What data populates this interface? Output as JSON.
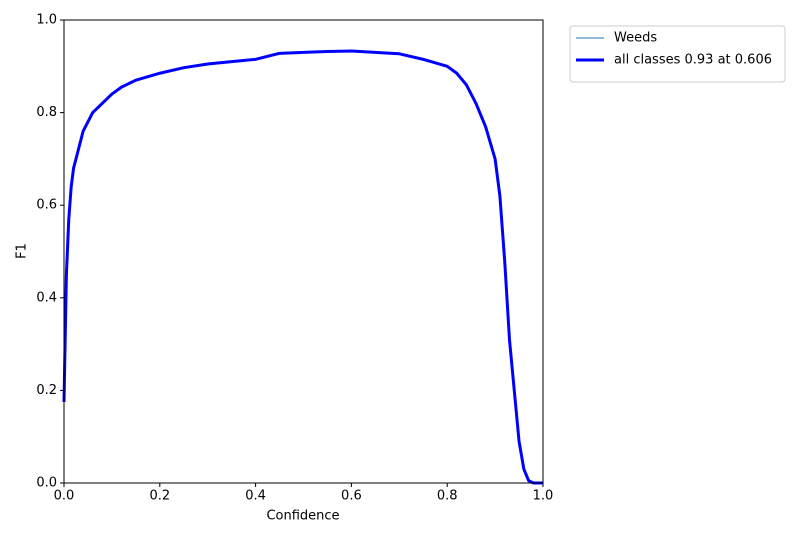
{
  "chart_data": {
    "type": "line",
    "xlabel": "Confidence",
    "ylabel": "F1",
    "x": [
      0,
      0.005,
      0.01,
      0.015,
      0.02,
      0.03,
      0.04,
      0.05,
      0.06,
      0.08,
      0.1,
      0.12,
      0.15,
      0.2,
      0.25,
      0.3,
      0.35,
      0.4,
      0.45,
      0.5,
      0.55,
      0.6,
      0.65,
      0.7,
      0.75,
      0.8,
      0.82,
      0.84,
      0.86,
      0.88,
      0.9,
      0.91,
      0.92,
      0.93,
      0.94,
      0.95,
      0.96,
      0.97,
      0.98,
      1.0
    ],
    "series": [
      {
        "name": "Weeds",
        "color": "#1f77b4",
        "width": 1,
        "values": [
          0.175,
          0.45,
          0.57,
          0.64,
          0.68,
          0.72,
          0.76,
          0.78,
          0.8,
          0.82,
          0.84,
          0.855,
          0.87,
          0.885,
          0.897,
          0.905,
          0.91,
          0.915,
          0.928,
          0.93,
          0.932,
          0.933,
          0.93,
          0.927,
          0.915,
          0.9,
          0.885,
          0.86,
          0.82,
          0.77,
          0.7,
          0.62,
          0.48,
          0.31,
          0.2,
          0.09,
          0.03,
          0.005,
          0,
          0
        ]
      },
      {
        "name": "all classes 0.93 at 0.606",
        "color": "#0000ff",
        "width": 3,
        "values": [
          0.175,
          0.45,
          0.57,
          0.64,
          0.68,
          0.72,
          0.76,
          0.78,
          0.8,
          0.82,
          0.84,
          0.855,
          0.87,
          0.885,
          0.897,
          0.905,
          0.91,
          0.915,
          0.928,
          0.93,
          0.932,
          0.933,
          0.93,
          0.927,
          0.915,
          0.9,
          0.885,
          0.86,
          0.82,
          0.77,
          0.7,
          0.62,
          0.48,
          0.31,
          0.2,
          0.09,
          0.03,
          0.005,
          0,
          0
        ]
      }
    ],
    "xlim": [
      0,
      1
    ],
    "ylim": [
      0,
      1
    ],
    "xticks": [
      {
        "value": 0,
        "label": "0.0"
      },
      0.2,
      0.4,
      0.6,
      0.8,
      {
        "value": 1,
        "label": "1.0"
      }
    ],
    "yticks": [
      {
        "value": 0,
        "label": "0.0"
      },
      0.2,
      0.4,
      0.6,
      0.8,
      {
        "value": 1,
        "label": "1.0"
      }
    ],
    "grid": false,
    "legend": "outside upper right"
  }
}
